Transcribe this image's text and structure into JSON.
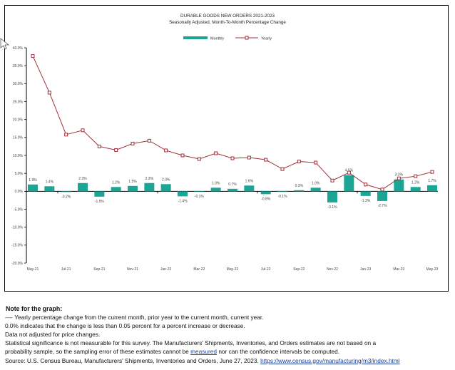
{
  "chart_data": {
    "type": "bar+line",
    "title": "DURABLE GOODS NEW ORDERS 2021-2023",
    "subtitle": "Seasonally Adjusted,  Month-To-Month Percentage Change",
    "ylim": [
      -20,
      40
    ],
    "y_ticks": [
      "40.0%",
      "35.0%",
      "30.0%",
      "25.0%",
      "20.0%",
      "15.0%",
      "10.0%",
      "5.0%",
      "0.0%",
      "-5.0%",
      "-10.0%",
      "-15.0%",
      "-20.0%"
    ],
    "y_tick_values": [
      40,
      35,
      30,
      25,
      20,
      15,
      10,
      5,
      0,
      -5,
      -10,
      -15,
      -20
    ],
    "x_tick_labels": [
      "May-21",
      "Jul-21",
      "Sep-21",
      "Nov-21",
      "Jan-22",
      "Mar-22",
      "May-22",
      "Jul-22",
      "Sep-22",
      "Nov-22",
      "Jan-23",
      "Mar-23",
      "May-23"
    ],
    "categories": [
      "May-21",
      "Jun-21",
      "Jul-21",
      "Aug-21",
      "Sep-21",
      "Oct-21",
      "Nov-21",
      "Dec-21",
      "Jan-22",
      "Feb-22",
      "Mar-22",
      "Apr-22",
      "May-22",
      "Jun-22",
      "Jul-22",
      "Aug-22",
      "Sep-22",
      "Oct-22",
      "Nov-22",
      "Dec-22",
      "Jan-23",
      "Feb-23",
      "Mar-23",
      "Apr-23",
      "May-23"
    ],
    "legend": {
      "position": "top-center",
      "entries": [
        "Monthly",
        "Yearly"
      ]
    },
    "grid": false,
    "series": [
      {
        "name": "Monthly",
        "kind": "bar",
        "color": "#1aa595",
        "values": [
          1.9,
          1.4,
          -0.2,
          2.3,
          -1.5,
          1.2,
          1.5,
          2.3,
          2.0,
          -1.4,
          -0.1,
          1.0,
          0.7,
          1.6,
          -0.8,
          -0.1,
          0.3,
          1.0,
          -3.1,
          4.5,
          -1.3,
          -2.7,
          3.3,
          1.2,
          1.7
        ],
        "labels": [
          "1.9%",
          "1.4%",
          "-0.2%",
          "2.3%",
          "-1.5%",
          "1.2%",
          "1.5%",
          "2.3%",
          "2.0%",
          "-1.4%",
          "-0.1%",
          "1.0%",
          "0.7%",
          "1.6%",
          "-0.8%",
          "-0.1%",
          "0.3%",
          "1.0%",
          "-3.1%",
          "4.5%",
          "-1.3%",
          "-2.7%",
          "3.3%",
          "1.2%",
          "1.7%"
        ]
      },
      {
        "name": "Yearly",
        "kind": "line",
        "color": "#a0313a",
        "values": [
          37.7,
          27.5,
          15.8,
          17.0,
          12.5,
          11.5,
          13.3,
          14.1,
          11.4,
          10.0,
          9.0,
          10.6,
          9.2,
          9.4,
          8.8,
          6.2,
          8.3,
          8.0,
          3.0,
          5.2,
          1.9,
          0.5,
          3.6,
          4.2,
          5.4
        ]
      }
    ]
  },
  "notes": {
    "header": "Note for the graph:",
    "line1": "---- Yearly percentage change from the current month, prior year to the current month, current year.",
    "line2": "0.0% indicates that the change is less than 0.05 percent for a percent increase or decrease.",
    "line3": "Data not adjusted for price changes.",
    "line4": "Statistical significance is not measurable for this survey.  The Manufacturers' Shipments, Inventories, and Orders estimates are not based on a",
    "line5_pre": "probability sample, so the sampling error of these estimates cannot be ",
    "line5_link": "measured",
    "line5_post": " nor can the confidence intervals be computed.",
    "line6_pre": "Source: U.S. Census Bureau, Manufacturers' Shipments, Inventories and Orders, June 27, 2023. ",
    "line6_link": "https://www.census.gov/manufacturing/m3/index.html"
  }
}
